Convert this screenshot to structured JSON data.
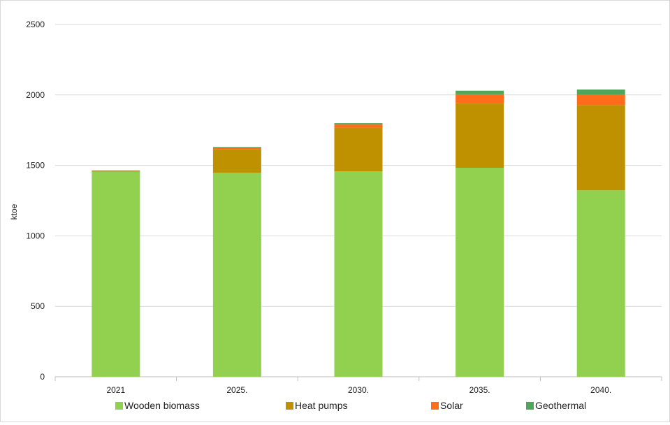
{
  "chart_data": {
    "type": "bar",
    "stacked": true,
    "categories": [
      "2021",
      "2025.",
      "2030.",
      "2035.",
      "2040."
    ],
    "series": [
      {
        "name": "Wooden biomass",
        "color": "#92d050",
        "values": [
          1455,
          1448,
          1458,
          1483,
          1323
        ]
      },
      {
        "name": "Heat pumps",
        "color": "#bf9000",
        "values": [
          5,
          168,
          310,
          460,
          605
        ]
      },
      {
        "name": "Solar",
        "color": "#ff6d1a",
        "values": [
          2,
          6,
          22,
          62,
          72
        ]
      },
      {
        "name": "Geothermal",
        "color": "#4ea65c",
        "values": [
          3,
          8,
          10,
          25,
          38
        ]
      }
    ],
    "ylabel": "ktoe",
    "ylim": [
      0,
      2500
    ],
    "yticks": [
      "0",
      "500",
      "1000",
      "1500",
      "2000",
      "2500"
    ],
    "grid": true,
    "legend_position": "bottom"
  }
}
